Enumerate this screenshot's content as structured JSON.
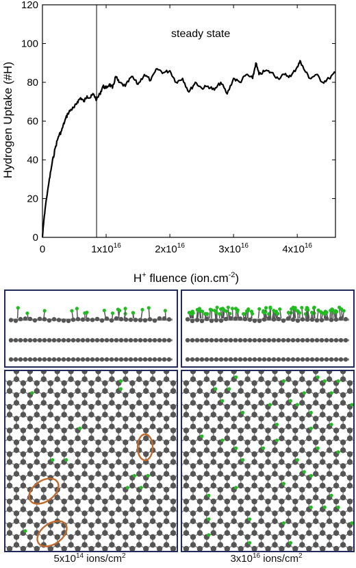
{
  "chart_data": {
    "type": "line",
    "ylabel": "Hydrogen Uptake (#H)",
    "xlabel": {
      "prefix": "H",
      "sup": "+",
      "main": " fluence (ion.cm",
      "sup2": "-2",
      "suffix": ")"
    },
    "annotation": "steady state",
    "ylim": [
      0,
      120
    ],
    "xlim": [
      0,
      4.6
    ],
    "x_unit_note": "units of 1x10^16 ion/cm^2",
    "yticks": [
      "0",
      "20",
      "40",
      "60",
      "80",
      "100",
      "120"
    ],
    "xticks": [
      {
        "value": 0,
        "label": "0"
      },
      {
        "value": 1,
        "base": "1x10",
        "exp": "16"
      },
      {
        "value": 2,
        "base": "2x10",
        "exp": "16"
      },
      {
        "value": 3,
        "base": "3x10",
        "exp": "16"
      },
      {
        "value": 4,
        "base": "4x10",
        "exp": "16"
      }
    ],
    "vline_x": 0.85,
    "series": [
      {
        "x": [
          0,
          0.02,
          0.05,
          0.1,
          0.15,
          0.2,
          0.25,
          0.3,
          0.35,
          0.4,
          0.45,
          0.5,
          0.55,
          0.6,
          0.65,
          0.7,
          0.75,
          0.8,
          0.85,
          0.9,
          0.95,
          1.0,
          1.05,
          1.1,
          1.15,
          1.2,
          1.3,
          1.4,
          1.5,
          1.6,
          1.7,
          1.8,
          1.9,
          2.0,
          2.1,
          2.2,
          2.3,
          2.4,
          2.5,
          2.6,
          2.7,
          2.8,
          2.9,
          3.0,
          3.1,
          3.2,
          3.3,
          3.35,
          3.4,
          3.5,
          3.6,
          3.7,
          3.8,
          3.9,
          4.0,
          4.05,
          4.1,
          4.2,
          4.3,
          4.4,
          4.5,
          4.6
        ],
        "y": [
          0,
          8,
          17,
          28,
          38,
          46,
          52,
          55,
          60,
          64,
          66,
          67,
          70,
          72,
          70,
          73,
          72,
          74,
          71,
          74,
          78,
          77,
          79,
          77,
          83,
          80,
          78,
          83,
          79,
          84,
          81,
          87,
          85,
          86,
          80,
          82,
          75,
          80,
          77,
          78,
          76,
          80,
          74,
          82,
          80,
          84,
          82,
          90,
          84,
          86,
          85,
          82,
          84,
          83,
          88,
          91,
          87,
          82,
          84,
          80,
          82,
          85
        ]
      }
    ]
  },
  "panels": {
    "left_caption": {
      "base": "5x10",
      "exp": "14",
      "unit": " ions/cm",
      "sup": "2"
    },
    "right_caption": {
      "base": "3x10",
      "exp": "16",
      "unit": " ions/cm",
      "sup": "2"
    }
  },
  "colors": {
    "frame": "#1f2a5a",
    "atom": "#555555",
    "bond": "#8a8a8a",
    "hydrogen": "#22bb22",
    "highlight": "#c06a2c"
  }
}
